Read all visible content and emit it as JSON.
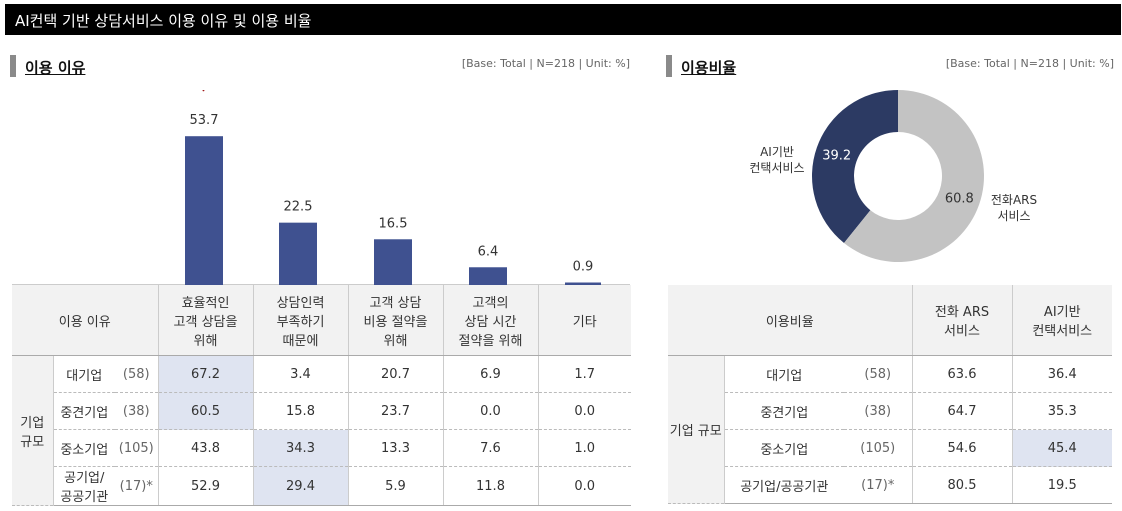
{
  "page_title": "AI컨택 기반 상담서비스 이용 이유 및 이용 비율",
  "left": {
    "title": "이용 이유",
    "base": "[Base: Total | N=218 | Unit: %]",
    "check_mark": "√",
    "table": {
      "header_label": "이용 이유",
      "columns": [
        "효율적인\n고객 상담을\n위해",
        "상담인력\n부족하기\n때문에",
        "고객 상담\n비용 절약을\n위해",
        "고객의\n상담 시간\n절약을 위해",
        "기타"
      ],
      "group_label": "기업\n규모",
      "rows": [
        {
          "name": "대기업",
          "n": "(58)",
          "values": [
            "67.2",
            "3.4",
            "20.7",
            "6.9",
            "1.7"
          ],
          "highlight": [
            0
          ]
        },
        {
          "name": "중견기업",
          "n": "(38)",
          "values": [
            "60.5",
            "15.8",
            "23.7",
            "0.0",
            "0.0"
          ],
          "highlight": [
            0
          ]
        },
        {
          "name": "중소기업",
          "n": "(105)",
          "values": [
            "43.8",
            "34.3",
            "13.3",
            "7.6",
            "1.0"
          ],
          "highlight": [
            1
          ]
        },
        {
          "name": "공기업/\n공공기관",
          "n": "(17)*",
          "values": [
            "52.9",
            "29.4",
            "5.9",
            "11.8",
            "0.0"
          ],
          "highlight": [
            1
          ]
        }
      ]
    }
  },
  "right": {
    "title": "이용비율",
    "base": "[Base: Total | N=218 | Unit: %]",
    "table": {
      "header_label": "이용비율",
      "columns": [
        "전화 ARS\n서비스",
        "AI기반\n컨택서비스"
      ],
      "group_label": "기업 규모",
      "rows": [
        {
          "name": "대기업",
          "n": "(58)",
          "values": [
            "63.6",
            "36.4"
          ],
          "highlight": []
        },
        {
          "name": "중견기업",
          "n": "(38)",
          "values": [
            "64.7",
            "35.3"
          ],
          "highlight": []
        },
        {
          "name": "중소기업",
          "n": "(105)",
          "values": [
            "54.6",
            "45.4"
          ],
          "highlight": [
            1
          ]
        },
        {
          "name": "공기업/공공기관",
          "n": "(17)*",
          "values": [
            "80.5",
            "19.5"
          ],
          "highlight": []
        }
      ]
    }
  },
  "colors": {
    "bar": "#3f5190",
    "donut_ai": "#2c3a63",
    "donut_ars": "#c3c3c3",
    "highlight": "#dfe4f1",
    "check": "#a01818"
  },
  "chart_data": [
    {
      "type": "bar",
      "categories": [
        "효율적인 고객 상담을 위해",
        "상담인력 부족하기 때문에",
        "고객 상담 비용 절약을 위해",
        "고객의 상담 시간 절약을 위해",
        "기타"
      ],
      "values": [
        53.7,
        22.5,
        16.5,
        6.4,
        0.9
      ],
      "labels": [
        "53.7",
        "22.5",
        "16.5",
        "6.4",
        "0.9"
      ],
      "ylim": [
        0,
        60
      ]
    },
    {
      "type": "pie",
      "donut": true,
      "categories": [
        "AI기반\n컨택서비스",
        "전화ARS\n서비스"
      ],
      "values": [
        39.2,
        60.8
      ],
      "labels": [
        "39.2",
        "60.8"
      ]
    }
  ]
}
